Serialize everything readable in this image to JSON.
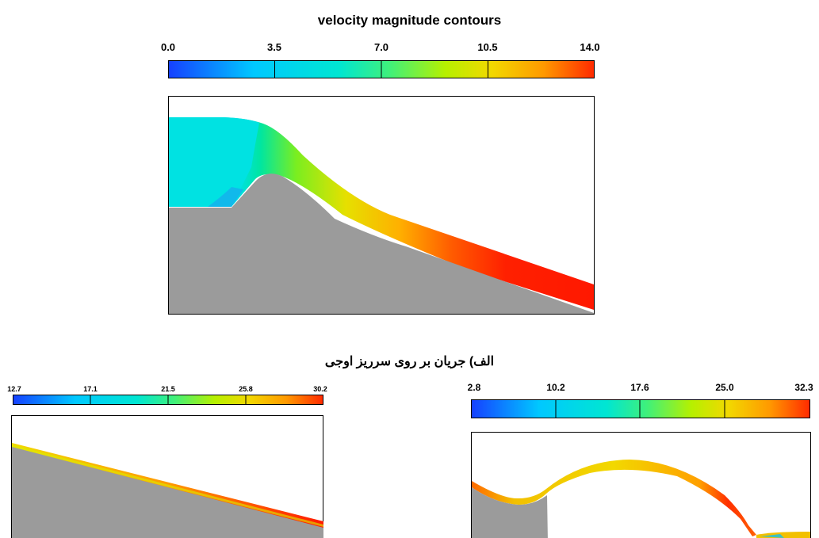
{
  "title": "velocity magnitude contours",
  "caption": "الف) جریان بر روی سرریز اوجی",
  "colors": {
    "solid": "#9b9b9b",
    "scale": [
      "#1640ff",
      "#00c8ff",
      "#00e6d2",
      "#40f07a",
      "#b6f000",
      "#f2d800",
      "#ff9a00",
      "#ff2a00"
    ]
  },
  "colorbars": [
    {
      "ticks": [
        "0.0",
        "3.5",
        "7.0",
        "10.5",
        "14.0"
      ]
    },
    {
      "ticks": [
        "12.7",
        "17.1",
        "21.5",
        "25.8",
        "30.2"
      ]
    },
    {
      "ticks": [
        "2.8",
        "10.2",
        "17.6",
        "25.0",
        "32.3"
      ]
    }
  ]
}
